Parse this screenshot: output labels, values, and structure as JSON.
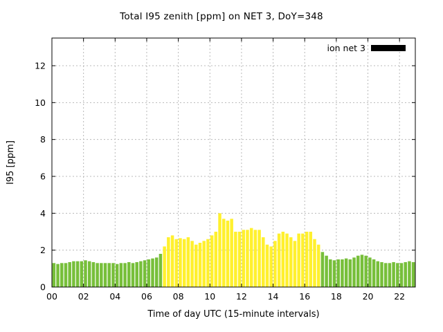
{
  "page": {
    "background": "#ffffff"
  },
  "chart_data": {
    "type": "bar",
    "title": "Total I95 zenith [ppm] on NET 3, DoY=348",
    "xlabel": "Time of day UTC (15-minute intervals)",
    "ylabel": "I95 [ppm]",
    "legend": {
      "label": "ion net 3",
      "swatch_color": "#000000"
    },
    "xlim": [
      0,
      23
    ],
    "ylim": [
      0,
      13.5
    ],
    "x_tick_labels": [
      "00",
      "02",
      "04",
      "06",
      "08",
      "10",
      "12",
      "14",
      "16",
      "18",
      "20",
      "22"
    ],
    "x_tick_values": [
      0,
      2,
      4,
      6,
      8,
      10,
      12,
      14,
      16,
      18,
      20,
      22
    ],
    "y_ticks": [
      0,
      2,
      4,
      6,
      8,
      10,
      12
    ],
    "grid": true,
    "legend_position": "top-right",
    "start_hour": 0,
    "interval_hours": 0.25,
    "colors": {
      "night_bar": "#77bf3a",
      "day_bar": "#fff02e",
      "grid": "#b8b8b8",
      "border": "#000000"
    },
    "day_range_indices": [
      28,
      67
    ],
    "values": [
      1.3,
      1.25,
      1.3,
      1.3,
      1.35,
      1.4,
      1.4,
      1.4,
      1.45,
      1.4,
      1.35,
      1.3,
      1.3,
      1.3,
      1.3,
      1.3,
      1.25,
      1.3,
      1.3,
      1.35,
      1.3,
      1.35,
      1.4,
      1.45,
      1.5,
      1.55,
      1.6,
      1.8,
      2.2,
      2.7,
      2.8,
      2.6,
      2.65,
      2.6,
      2.7,
      2.5,
      2.3,
      2.4,
      2.5,
      2.6,
      2.8,
      3.0,
      4.0,
      3.7,
      3.6,
      3.7,
      3.0,
      3.0,
      3.1,
      3.1,
      3.2,
      3.1,
      3.1,
      2.7,
      2.3,
      2.2,
      2.5,
      2.9,
      3.0,
      2.9,
      2.7,
      2.5,
      2.9,
      2.9,
      3.0,
      3.0,
      2.6,
      2.3,
      1.9,
      1.7,
      1.5,
      1.45,
      1.5,
      1.5,
      1.55,
      1.5,
      1.6,
      1.7,
      1.75,
      1.7,
      1.6,
      1.5,
      1.4,
      1.35,
      1.3,
      1.3,
      1.35,
      1.3,
      1.3,
      1.35,
      1.4,
      1.35
    ]
  }
}
